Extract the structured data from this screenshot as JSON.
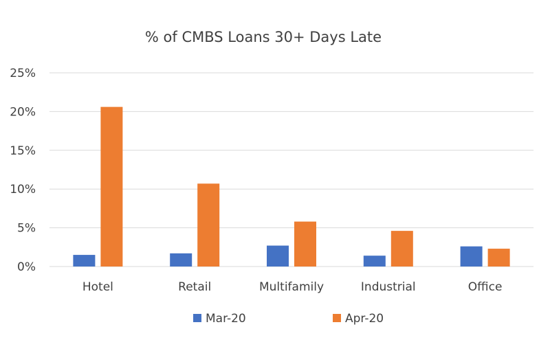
{
  "chart_data": {
    "type": "bar",
    "title": "% of CMBS Loans 30+ Days Late",
    "categories": [
      "Hotel",
      "Retail",
      "Multifamily",
      "Industrial",
      "Office"
    ],
    "series": [
      {
        "name": "Mar-20",
        "values": [
          1.5,
          1.7,
          2.7,
          1.4,
          2.6
        ],
        "color": "#4472C4"
      },
      {
        "name": "Apr-20",
        "values": [
          20.6,
          10.7,
          5.8,
          4.6,
          2.3
        ],
        "color": "#ED7D31"
      }
    ],
    "y_ticks": [
      "0%",
      "5%",
      "10%",
      "15%",
      "20%",
      "25%"
    ],
    "y_tick_values": [
      0,
      5,
      10,
      15,
      20,
      25
    ],
    "ylim": [
      0,
      25
    ],
    "xlabel": "",
    "ylabel": "",
    "grid": true,
    "gridline_color": "#D9D9D9",
    "legend_position": "bottom"
  }
}
